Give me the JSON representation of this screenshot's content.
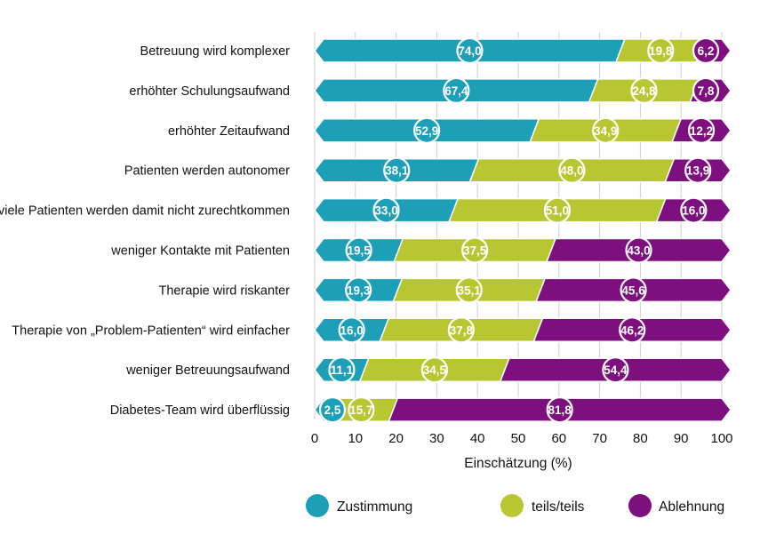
{
  "chart_data": {
    "type": "bar",
    "orientation": "horizontal",
    "stacked": true,
    "xlabel": "Einschätzung (%)",
    "xlim": [
      0,
      100
    ],
    "xticks": [
      "0",
      "10",
      "20",
      "30",
      "40",
      "50",
      "60",
      "70",
      "80",
      "90",
      "100"
    ],
    "grid": true,
    "legend_position": "bottom",
    "categories": [
      "Betreuung wird komplexer",
      "erhöhter Schulungsaufwand",
      "erhöhter Zeitaufwand",
      "Patienten werden autonomer",
      "viele Patienten werden damit nicht zurechtkommen",
      "weniger Kontakte mit Patienten",
      "Therapie wird riskanter",
      "Therapie von „Problem-Patienten“ wird einfacher",
      "weniger Betreuungsaufwand",
      "Diabetes-Team wird überflüssig"
    ],
    "series": [
      {
        "name": "Zustimmung",
        "color": "#1e9fb8",
        "values": [
          74.0,
          67.4,
          52.9,
          38.1,
          33.0,
          19.5,
          19.3,
          16.0,
          11.1,
          2.5
        ],
        "labels": [
          "74,0",
          "67,4",
          "52,9",
          "38,1",
          "33,0",
          "19,5",
          "19,3",
          "16,0",
          "11,1",
          "2,5"
        ]
      },
      {
        "name": "teils/teils",
        "color": "#b7c631",
        "values": [
          19.8,
          24.8,
          34.9,
          48.0,
          51.0,
          37.5,
          35.1,
          37.8,
          34.5,
          15.7
        ],
        "labels": [
          "19,8",
          "24,8",
          "34,9",
          "48,0",
          "51,0",
          "37,5",
          "35,1",
          "37,8",
          "34,5",
          "15,7"
        ]
      },
      {
        "name": "Ablehnung",
        "color": "#7d0f7e",
        "values": [
          6.2,
          7.8,
          12.2,
          13.9,
          16.0,
          43.0,
          45.6,
          46.2,
          54.4,
          81.8
        ],
        "labels": [
          "6,2",
          "7,8",
          "12,2",
          "13,9",
          "16,0",
          "43,0",
          "45,6",
          "46,2",
          "54,4",
          "81,8"
        ]
      }
    ]
  }
}
